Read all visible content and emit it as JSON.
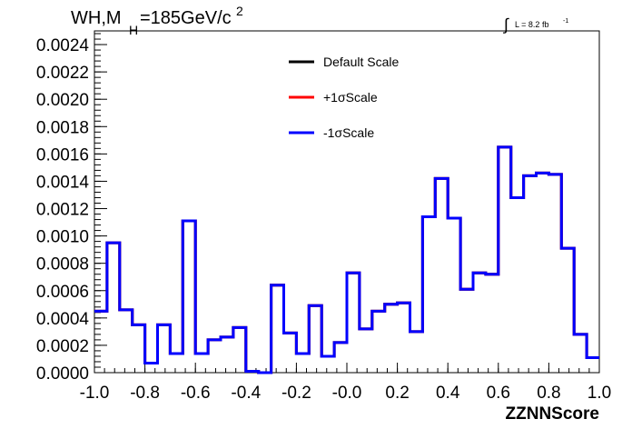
{
  "chart_data": {
    "type": "histogram",
    "title_parts": {
      "main": "WH,M",
      "sub": "H",
      "rest": "=185GeV/c",
      "sup": "2"
    },
    "lumi_parts": {
      "integral": "∫",
      "text": "L = 8.2 fb",
      "sup": "-1"
    },
    "xlabel": "ZZNNScore",
    "ylabel": "",
    "xlim": [
      -1.0,
      1.0
    ],
    "ylim": [
      0.0,
      0.0025
    ],
    "x_ticks": [
      "-1.0",
      "-0.8",
      "-0.6",
      "-0.4",
      "-0.2",
      "-0.0",
      "0.2",
      "0.4",
      "0.6",
      "0.8",
      "1.0"
    ],
    "x_tick_values": [
      -1.0,
      -0.8,
      -0.6,
      -0.4,
      -0.2,
      0.0,
      0.2,
      0.4,
      0.6,
      0.8,
      1.0
    ],
    "y_ticks": [
      "0.0000",
      "0.0002",
      "0.0004",
      "0.0006",
      "0.0008",
      "0.0010",
      "0.0012",
      "0.0014",
      "0.0016",
      "0.0018",
      "0.0020",
      "0.0022",
      "0.0024"
    ],
    "y_tick_values": [
      0.0,
      0.0002,
      0.0004,
      0.0006,
      0.0008,
      0.001,
      0.0012,
      0.0014,
      0.0016,
      0.0018,
      0.002,
      0.0022,
      0.0024
    ],
    "bin_edges": [
      -1.0,
      -0.95,
      -0.9,
      -0.85,
      -0.8,
      -0.75,
      -0.7,
      -0.65,
      -0.6,
      -0.55,
      -0.5,
      -0.45,
      -0.4,
      -0.35,
      -0.3,
      -0.25,
      -0.2,
      -0.15,
      -0.1,
      -0.05,
      0.0,
      0.05,
      0.1,
      0.15,
      0.2,
      0.25,
      0.3,
      0.35,
      0.4,
      0.45,
      0.5,
      0.55,
      0.6,
      0.65,
      0.7,
      0.75,
      0.8,
      0.85,
      0.9,
      0.95,
      1.0
    ],
    "series": [
      {
        "name": "Default Scale",
        "color": "#000000",
        "values": [
          0.00045,
          0.00095,
          0.00046,
          0.00035,
          7e-05,
          0.00035,
          0.00014,
          0.00111,
          0.00014,
          0.00024,
          0.00026,
          0.00033,
          1e-05,
          0.0,
          0.00064,
          0.00029,
          0.00014,
          0.00049,
          0.00012,
          0.00022,
          0.00073,
          0.00032,
          0.00045,
          0.0005,
          0.00051,
          0.0003,
          0.00114,
          0.00142,
          0.00113,
          0.00061,
          0.00073,
          0.00072,
          0.00165,
          0.00128,
          0.00144,
          0.00146,
          0.00145,
          0.00091,
          0.00028,
          0.00011
        ]
      },
      {
        "name": "+1σScale",
        "color": "#ff0000",
        "values": [
          0.00045,
          0.00095,
          0.00046,
          0.00035,
          7e-05,
          0.00035,
          0.00014,
          0.00111,
          0.00014,
          0.00024,
          0.00026,
          0.00033,
          1e-05,
          0.0,
          0.00064,
          0.00029,
          0.00014,
          0.00049,
          0.00012,
          0.00022,
          0.00073,
          0.00032,
          0.00045,
          0.0005,
          0.00051,
          0.0003,
          0.00114,
          0.00142,
          0.00113,
          0.00061,
          0.00073,
          0.00072,
          0.00165,
          0.00128,
          0.00144,
          0.00146,
          0.00145,
          0.00091,
          0.00028,
          0.00011
        ]
      },
      {
        "name": "-1σScale",
        "color": "#0000ff",
        "values": [
          0.00045,
          0.00095,
          0.00046,
          0.00035,
          7e-05,
          0.00035,
          0.00014,
          0.00111,
          0.00014,
          0.00024,
          0.00026,
          0.00033,
          1e-05,
          0.0,
          0.00064,
          0.00029,
          0.00014,
          0.00049,
          0.00012,
          0.00022,
          0.00073,
          0.00032,
          0.00045,
          0.0005,
          0.00051,
          0.0003,
          0.00114,
          0.00142,
          0.00113,
          0.00061,
          0.00073,
          0.00072,
          0.00165,
          0.00128,
          0.00144,
          0.00146,
          0.00145,
          0.00091,
          0.00028,
          0.00011
        ]
      }
    ],
    "legend": {
      "placement": "top-center",
      "entries": [
        {
          "label": "Default Scale",
          "color": "#000000"
        },
        {
          "label": "+1σScale",
          "color": "#ff0000"
        },
        {
          "label": "-1σScale",
          "color": "#0000ff"
        }
      ]
    },
    "grid": false
  }
}
